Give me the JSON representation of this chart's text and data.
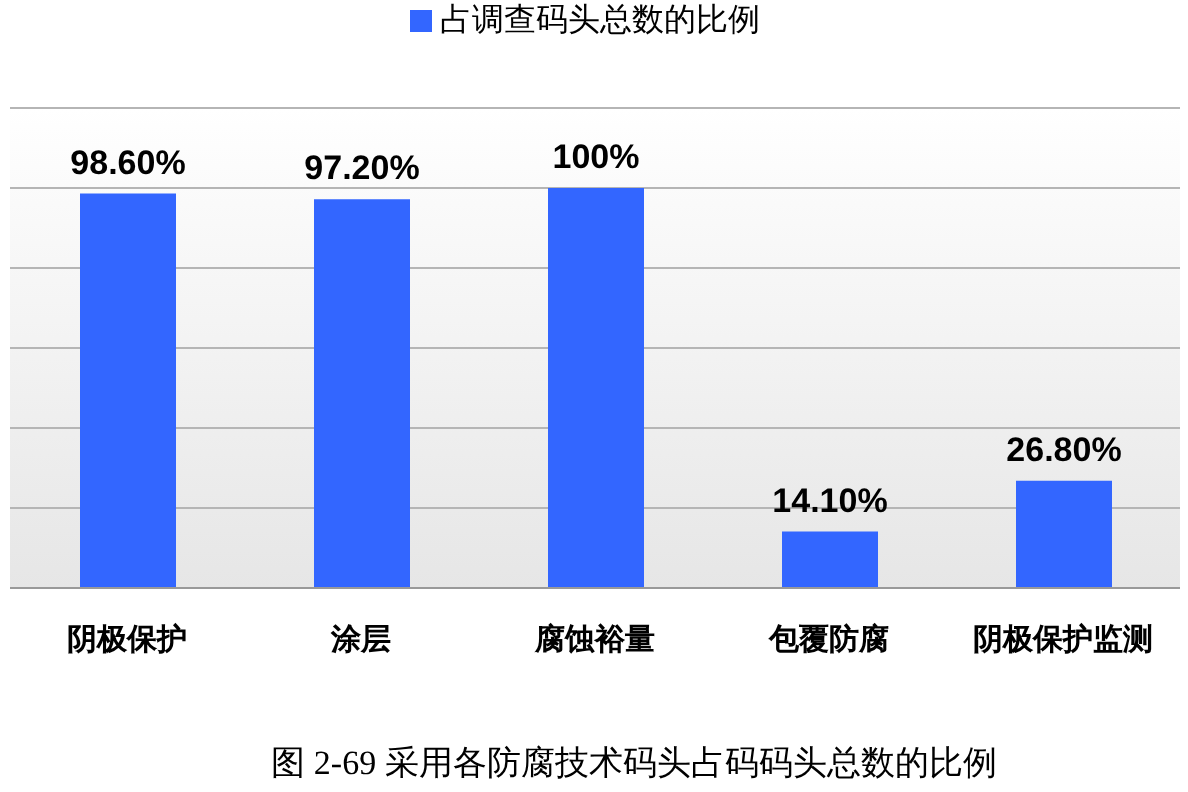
{
  "chart_data": {
    "type": "bar",
    "categories": [
      "阴极保护",
      "涂层",
      "腐蚀裕量",
      "包覆防腐",
      "阴极保护监测"
    ],
    "series": [
      {
        "name": "占调查码头总数的比例",
        "color": "#3366ff",
        "values": [
          98.6,
          97.2,
          100,
          14.1,
          26.8
        ],
        "value_labels": [
          "98.60%",
          "97.20%",
          "100%",
          "14.10%",
          "26.80%"
        ]
      }
    ],
    "ylim": [
      0,
      120
    ],
    "tick_labels": "x",
    "grid": "y",
    "legend": "top",
    "annotations": [
      "图 2-69  采用各防腐技术码头占码码头总数的比例"
    ]
  }
}
